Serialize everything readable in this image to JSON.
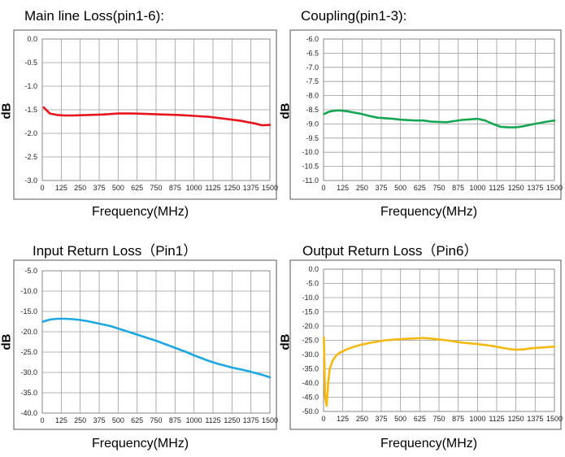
{
  "chart_data": [
    {
      "type": "line",
      "title": "Main line Loss(pin1-6):",
      "xlabel": "Frequency(MHz)",
      "ylabel": "dB",
      "xlim": [
        0,
        1500
      ],
      "ylim": [
        -3.0,
        0.0
      ],
      "x_ticks": [
        "0",
        "125",
        "250",
        "375",
        "500",
        "625",
        "750",
        "875",
        "1000",
        "1125",
        "1250",
        "1375",
        "1500"
      ],
      "y_ticks": [
        "0.0",
        "-0.5",
        "-1.0",
        "-1.5",
        "-2.0",
        "-2.5",
        "-3.0"
      ],
      "grid": true,
      "color": "#e8141b",
      "series": [
        {
          "x": [
            10,
            25,
            50,
            100,
            150,
            200,
            300,
            400,
            500,
            600,
            700,
            800,
            900,
            1000,
            1100,
            1200,
            1300,
            1400,
            1450,
            1500
          ],
          "y": [
            -1.45,
            -1.5,
            -1.58,
            -1.61,
            -1.62,
            -1.62,
            -1.61,
            -1.6,
            -1.58,
            -1.58,
            -1.59,
            -1.6,
            -1.61,
            -1.63,
            -1.65,
            -1.69,
            -1.73,
            -1.79,
            -1.83,
            -1.82
          ]
        }
      ]
    },
    {
      "type": "line",
      "title": "Coupling(pin1-3):",
      "xlabel": "Frequency(MHz)",
      "ylabel": "dB",
      "xlim": [
        0,
        1500
      ],
      "ylim": [
        -11.0,
        -6.0
      ],
      "x_ticks": [
        "0",
        "125",
        "250",
        "375",
        "500",
        "625",
        "750",
        "875",
        "1000",
        "1125",
        "1250",
        "1375",
        "1500"
      ],
      "y_ticks": [
        "-6.0",
        "-6.5",
        "-7.0",
        "-7.5",
        "-8.0",
        "-8.5",
        "-9.0",
        "-9.5",
        "-10.0",
        "-10.5",
        "-11.0"
      ],
      "grid": true,
      "color": "#15a651",
      "series": [
        {
          "x": [
            5,
            30,
            60,
            100,
            150,
            200,
            250,
            300,
            350,
            400,
            450,
            500,
            600,
            650,
            700,
            750,
            800,
            850,
            900,
            950,
            1000,
            1050,
            1100,
            1150,
            1200,
            1250,
            1300,
            1350,
            1400,
            1450,
            1500
          ],
          "y": [
            -8.65,
            -8.58,
            -8.54,
            -8.52,
            -8.55,
            -8.6,
            -8.65,
            -8.72,
            -8.78,
            -8.8,
            -8.82,
            -8.85,
            -8.88,
            -8.88,
            -8.92,
            -8.93,
            -8.94,
            -8.9,
            -8.86,
            -8.84,
            -8.82,
            -8.88,
            -9.0,
            -9.1,
            -9.12,
            -9.12,
            -9.08,
            -9.02,
            -8.97,
            -8.92,
            -8.88
          ]
        }
      ]
    },
    {
      "type": "line",
      "title": "Input Return Loss（Pin1）",
      "xlabel": "Frequency(MHz)",
      "ylabel": "dB",
      "xlim": [
        0,
        1500
      ],
      "ylim": [
        -40.0,
        -5.0
      ],
      "x_ticks": [
        "0",
        "125",
        "250",
        "375",
        "500",
        "625",
        "750",
        "875",
        "1000",
        "1125",
        "1250",
        "1375",
        "1500"
      ],
      "y_ticks": [
        "-5.0",
        "-10.0",
        "-15.0",
        "-20.0",
        "-25.0",
        "-30.0",
        "-35.0",
        "-40.0"
      ],
      "grid": true,
      "color": "#1ea8e2",
      "series": [
        {
          "x": [
            5,
            50,
            100,
            150,
            200,
            250,
            300,
            350,
            400,
            450,
            500,
            550,
            600,
            650,
            700,
            750,
            800,
            850,
            900,
            950,
            1000,
            1050,
            1100,
            1150,
            1200,
            1250,
            1300,
            1350,
            1400,
            1450,
            1500
          ],
          "y": [
            -17.5,
            -17.0,
            -16.8,
            -16.8,
            -16.9,
            -17.1,
            -17.4,
            -17.8,
            -18.2,
            -18.6,
            -19.2,
            -19.8,
            -20.4,
            -21.0,
            -21.6,
            -22.2,
            -22.9,
            -23.6,
            -24.3,
            -25.0,
            -25.8,
            -26.5,
            -27.2,
            -27.8,
            -28.3,
            -28.8,
            -29.2,
            -29.6,
            -30.1,
            -30.6,
            -31.2
          ]
        }
      ]
    },
    {
      "type": "line",
      "title": "Output Return Loss（Pin6）",
      "xlabel": "Frequency(MHz)",
      "ylabel": "dB",
      "xlim": [
        0,
        1500
      ],
      "ylim": [
        -50.0,
        0.0
      ],
      "x_ticks": [
        "0",
        "125",
        "250",
        "375",
        "500",
        "625",
        "750",
        "875",
        "1000",
        "1125",
        "1250",
        "1375",
        "1500"
      ],
      "y_ticks": [
        "0.0",
        "-5.0",
        "-10.0",
        "-15.0",
        "-20.0",
        "-25.0",
        "-30.0",
        "-35.0",
        "-40.0",
        "-45.0",
        "-50.0"
      ],
      "grid": true,
      "color": "#f5b80f",
      "series": [
        {
          "x": [
            2,
            10,
            20,
            30,
            40,
            60,
            80,
            100,
            150,
            200,
            250,
            300,
            400,
            500,
            600,
            650,
            700,
            800,
            900,
            1000,
            1100,
            1150,
            1200,
            1250,
            1300,
            1350,
            1400,
            1450,
            1500
          ],
          "y": [
            -24.0,
            -45.0,
            -48.0,
            -40.0,
            -35.0,
            -32.0,
            -30.5,
            -29.5,
            -28.2,
            -27.2,
            -26.5,
            -25.9,
            -25.0,
            -24.6,
            -24.3,
            -24.2,
            -24.4,
            -25.0,
            -25.8,
            -26.3,
            -27.0,
            -27.5,
            -28.0,
            -28.3,
            -28.2,
            -27.8,
            -27.6,
            -27.4,
            -27.2
          ]
        }
      ]
    }
  ]
}
